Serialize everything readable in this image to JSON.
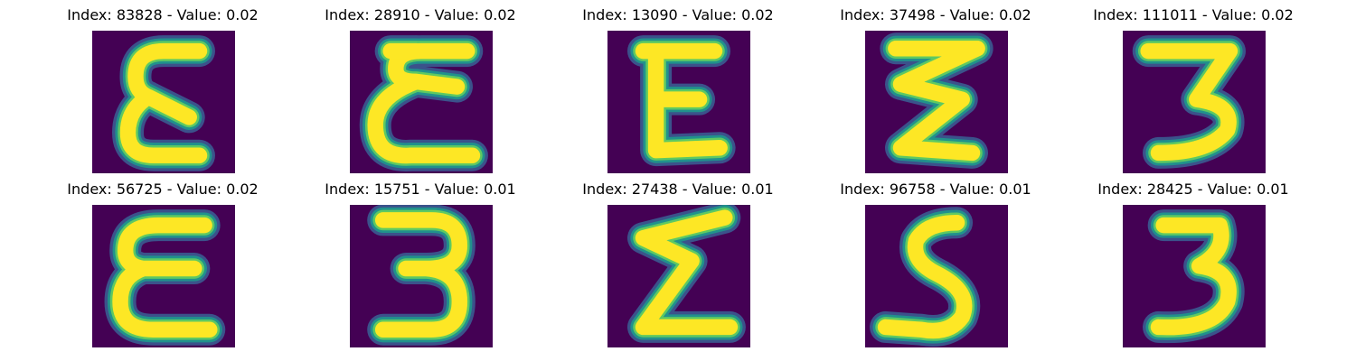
{
  "colors": {
    "background": "#440154",
    "mid_low": "#3b528b",
    "mid": "#21918c",
    "mid_high": "#5ec962",
    "foreground": "#fde725",
    "title_text": "#000000"
  },
  "figure": {
    "title_format": "Index: {index} - Value: {value}",
    "colormap": "viridis",
    "image_resolution": "28x28",
    "axes_visible": false
  },
  "panels": [
    {
      "index": "83828",
      "value": "0.02",
      "title": "Index: 83828 - Value: 0.02",
      "glyph": "epsilon"
    },
    {
      "index": "28910",
      "value": "0.02",
      "title": "Index: 28910 - Value: 0.02",
      "glyph": "epsilon-double-loop"
    },
    {
      "index": "13090",
      "value": "0.02",
      "title": "Index: 13090 - Value: 0.02",
      "glyph": "E-block"
    },
    {
      "index": "37498",
      "value": "0.02",
      "title": "Index: 37498 - Value: 0.02",
      "glyph": "sigma-zigzag"
    },
    {
      "index": "111011",
      "value": "0.02",
      "title": "Index: 111011 - Value: 0.02",
      "glyph": "three-angular"
    },
    {
      "index": "56725",
      "value": "0.02",
      "title": "Index: 56725 - Value: 0.02",
      "glyph": "epsilon-bold"
    },
    {
      "index": "15751",
      "value": "0.01",
      "title": "Index: 15751 - Value: 0.01",
      "glyph": "three-round"
    },
    {
      "index": "27438",
      "value": "0.01",
      "title": "Index: 27438 - Value: 0.01",
      "glyph": "sigma-slanted"
    },
    {
      "index": "96758",
      "value": "0.01",
      "title": "Index: 96758 - Value: 0.01",
      "glyph": "five-s"
    },
    {
      "index": "28425",
      "value": "0.01",
      "title": "Index: 28425 - Value: 0.01",
      "glyph": "three-bold"
    }
  ]
}
